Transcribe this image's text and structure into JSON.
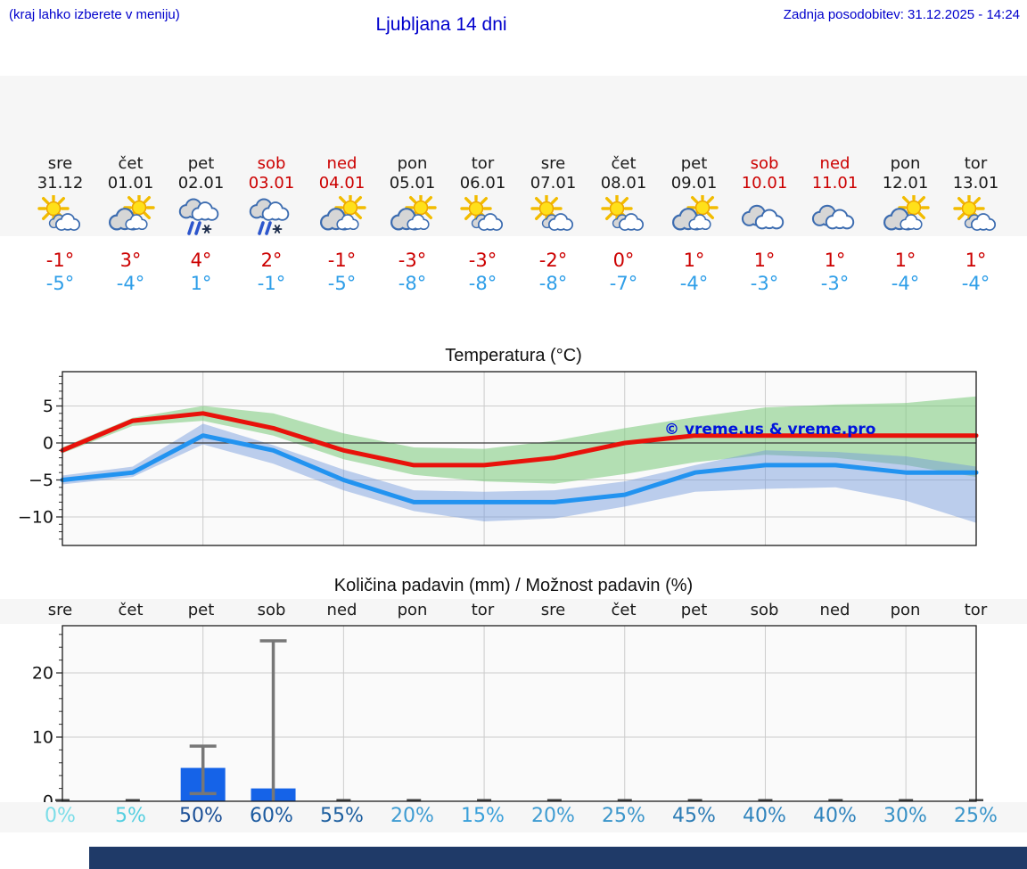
{
  "header": {
    "hint": "(kraj lahko izberete v meniju)",
    "title": "Ljubljana 14 dni",
    "updated": "Zadnja posodobitev: 31.12.2025 - 14:24"
  },
  "colors": {
    "header_blue": "#0000cc",
    "weekend_red": "#cc0000",
    "tmax_red": "#cc0000",
    "tmin_blue": "#2e9ee8",
    "strip_bg": "#f6f6f6",
    "plot_bg": "#fafafa",
    "grid": "#cccccc",
    "spine": "#1a1a1a",
    "bar_blue": "#1563e8",
    "whisker_gray": "#777777",
    "watermark_blue": "#0014dd"
  },
  "days": [
    {
      "name": "sre",
      "date": "31.12",
      "weekend": false,
      "icon": "sun-cloud",
      "tmax": "-1°",
      "tmin": "-5°",
      "prob": "0%",
      "prob_color": "#7bdde8"
    },
    {
      "name": "čet",
      "date": "01.01",
      "weekend": false,
      "icon": "cloud-sun",
      "tmax": "3°",
      "tmin": "-4°",
      "prob": "5%",
      "prob_color": "#54cfe0"
    },
    {
      "name": "pet",
      "date": "02.01",
      "weekend": false,
      "icon": "sleet",
      "tmax": "4°",
      "tmin": "1°",
      "prob": "50%",
      "prob_color": "#1b4f96"
    },
    {
      "name": "sob",
      "date": "03.01",
      "weekend": true,
      "icon": "sleet",
      "tmax": "2°",
      "tmin": "-1°",
      "prob": "60%",
      "prob_color": "#1b5a9f"
    },
    {
      "name": "ned",
      "date": "04.01",
      "weekend": true,
      "icon": "cloud-sun",
      "tmax": "-1°",
      "tmin": "-5°",
      "prob": "55%",
      "prob_color": "#1d5f9f"
    },
    {
      "name": "pon",
      "date": "05.01",
      "weekend": false,
      "icon": "cloud-sun",
      "tmax": "-3°",
      "tmin": "-8°",
      "prob": "20%",
      "prob_color": "#3f9cd2"
    },
    {
      "name": "tor",
      "date": "06.01",
      "weekend": false,
      "icon": "sun-cloud",
      "tmax": "-3°",
      "tmin": "-8°",
      "prob": "15%",
      "prob_color": "#3aa0da"
    },
    {
      "name": "sre",
      "date": "07.01",
      "weekend": false,
      "icon": "sun-cloud",
      "tmax": "-2°",
      "tmin": "-8°",
      "prob": "20%",
      "prob_color": "#3f9cd2"
    },
    {
      "name": "čet",
      "date": "08.01",
      "weekend": false,
      "icon": "sun-cloud",
      "tmax": "0°",
      "tmin": "-7°",
      "prob": "25%",
      "prob_color": "#3a95ca"
    },
    {
      "name": "pet",
      "date": "09.01",
      "weekend": false,
      "icon": "cloud-sun",
      "tmax": "1°",
      "tmin": "-4°",
      "prob": "45%",
      "prob_color": "#2c7cb5"
    },
    {
      "name": "sob",
      "date": "10.01",
      "weekend": true,
      "icon": "cloudy",
      "tmax": "1°",
      "tmin": "-3°",
      "prob": "40%",
      "prob_color": "#3084bd"
    },
    {
      "name": "ned",
      "date": "11.01",
      "weekend": true,
      "icon": "cloudy",
      "tmax": "1°",
      "tmin": "-3°",
      "prob": "40%",
      "prob_color": "#3084bd"
    },
    {
      "name": "pon",
      "date": "12.01",
      "weekend": false,
      "icon": "cloud-sun",
      "tmax": "1°",
      "tmin": "-4°",
      "prob": "30%",
      "prob_color": "#3690c5"
    },
    {
      "name": "tor",
      "date": "13.01",
      "weekend": false,
      "icon": "sun-cloud",
      "tmax": "1°",
      "tmin": "-4°",
      "prob": "25%",
      "prob_color": "#3a95ca"
    }
  ],
  "chart_data": [
    {
      "type": "line",
      "title": "Temperatura (°C)",
      "x_labels": [
        "sre 31.12",
        "čet 01.01",
        "pet 02.01",
        "sob 03.01",
        "ned 04.01",
        "pon 05.01",
        "tor 06.01",
        "sre 07.01",
        "čet 08.01",
        "pet 09.01",
        "sob 10.01",
        "ned 11.01",
        "pon 12.01",
        "tor 13.01"
      ],
      "ylim": [
        -13.9,
        9.6
      ],
      "yticks": [
        5,
        0,
        -5,
        -10
      ],
      "ytick_labels": [
        "5",
        "0",
        "−5",
        "−10"
      ],
      "grid_day_indices": [
        2,
        4,
        6,
        8,
        10,
        12
      ],
      "series": [
        {
          "name": "max-temperature",
          "color": "#e8120b",
          "values": [
            -1,
            3,
            4,
            2,
            -1,
            -3,
            -3,
            -2,
            0,
            1,
            1,
            1,
            1,
            1
          ]
        },
        {
          "name": "min-temperature",
          "color": "#2293f0",
          "values": [
            -5,
            -4,
            1,
            -1,
            -5,
            -8,
            -8,
            -8,
            -7,
            -4,
            -3,
            -3,
            -4,
            -4
          ]
        }
      ],
      "bands": [
        {
          "name": "max-uncertainty",
          "color": "rgba(120,200,120,0.55)",
          "upper": [
            -0.6,
            3.4,
            5.0,
            4.0,
            1.3,
            -0.6,
            -0.8,
            0.3,
            2.0,
            3.5,
            4.8,
            5.2,
            5.4,
            6.3
          ],
          "lower": [
            -1.4,
            2.3,
            3.0,
            1.0,
            -2.2,
            -4.3,
            -5.2,
            -5.5,
            -4.2,
            -2.6,
            -1.6,
            -2.0,
            -3.0,
            -4.6
          ]
        },
        {
          "name": "min-uncertainty",
          "color": "rgba(110,150,220,0.45)",
          "upper": [
            -4.4,
            -3.2,
            2.6,
            -0.3,
            -3.6,
            -6.4,
            -6.6,
            -6.4,
            -5.2,
            -3.0,
            -1.0,
            -1.2,
            -1.8,
            -3.2
          ],
          "lower": [
            -5.6,
            -4.6,
            -0.2,
            -2.8,
            -6.4,
            -9.2,
            -10.6,
            -10.2,
            -8.6,
            -6.6,
            -6.2,
            -6.0,
            -7.8,
            -10.8
          ]
        }
      ],
      "watermark": "© vreme.us & vreme.pro"
    },
    {
      "type": "bar",
      "title": "Količina padavin (mm) / Možnost padavin (%)",
      "categories": [
        "sre",
        "čet",
        "pet",
        "sob",
        "ned",
        "pon",
        "tor",
        "sre",
        "čet",
        "pet",
        "sob",
        "ned",
        "pon",
        "tor"
      ],
      "values": [
        0,
        0,
        5.2,
        2,
        0,
        0,
        0,
        0,
        0,
        0,
        0,
        0,
        0,
        0
      ],
      "whiskers": [
        {
          "day_index": 2,
          "low": 1.2,
          "high": 8.6,
          "caps": "both"
        },
        {
          "day_index": 3,
          "low": 0,
          "high": 25,
          "caps": "top"
        }
      ],
      "probabilities": [
        "0%",
        "5%",
        "50%",
        "60%",
        "55%",
        "20%",
        "15%",
        "20%",
        "25%",
        "45%",
        "40%",
        "40%",
        "30%",
        "25%"
      ],
      "yticks": [
        0,
        10,
        20
      ],
      "ytick_labels": [
        "0",
        "10",
        "20"
      ],
      "ylim": [
        0,
        27.4
      ],
      "grid_day_indices": [
        2,
        4,
        6,
        8,
        10,
        12
      ]
    }
  ]
}
